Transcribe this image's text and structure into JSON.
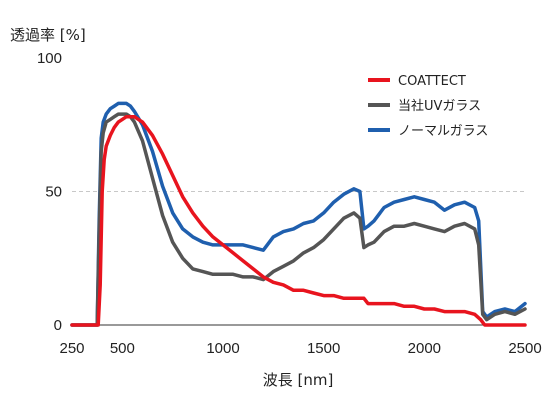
{
  "chart_data": {
    "type": "line",
    "ylabel": "透過率 [%]",
    "xlabel": "波長 [nm]",
    "xlim": [
      250,
      2500
    ],
    "ylim": [
      0,
      100
    ],
    "x_ticks": [
      250,
      500,
      1000,
      1500,
      2000,
      2500
    ],
    "y_ticks": [
      0,
      50,
      100
    ],
    "gridlines": [
      50
    ],
    "legend_position": "top-right",
    "series": [
      {
        "name": "COATTECT",
        "color": "#e8141e",
        "x": [
          250,
          380,
          390,
          400,
          410,
          420,
          440,
          460,
          480,
          500,
          520,
          540,
          560,
          580,
          600,
          650,
          700,
          750,
          800,
          850,
          900,
          950,
          1000,
          1050,
          1100,
          1150,
          1200,
          1250,
          1300,
          1350,
          1400,
          1450,
          1500,
          1550,
          1600,
          1650,
          1700,
          1720,
          1750,
          1800,
          1850,
          1900,
          1950,
          2000,
          2050,
          2100,
          2150,
          2200,
          2250,
          2280,
          2300,
          2350,
          2400,
          2450,
          2500
        ],
        "y": [
          0,
          0,
          15,
          50,
          62,
          67,
          71,
          74,
          76,
          77,
          78,
          78,
          78,
          77,
          76,
          71,
          64,
          56,
          48,
          42,
          37,
          33,
          30,
          27,
          24,
          21,
          18,
          16,
          15,
          13,
          13,
          12,
          11,
          11,
          10,
          10,
          10,
          8,
          8,
          8,
          8,
          7,
          7,
          6,
          6,
          5,
          5,
          5,
          4,
          2,
          0,
          0,
          0,
          0,
          0
        ]
      },
      {
        "name": "当社UVガラス",
        "color": "#555555",
        "x": [
          250,
          375,
          385,
          395,
          405,
          420,
          440,
          460,
          480,
          500,
          520,
          540,
          560,
          600,
          650,
          700,
          750,
          800,
          850,
          900,
          950,
          1000,
          1050,
          1100,
          1150,
          1200,
          1250,
          1300,
          1350,
          1400,
          1450,
          1500,
          1550,
          1600,
          1650,
          1680,
          1700,
          1720,
          1750,
          1800,
          1850,
          1900,
          1950,
          2000,
          2050,
          2100,
          2150,
          2200,
          2250,
          2270,
          2290,
          2310,
          2350,
          2400,
          2450,
          2500
        ],
        "y": [
          0,
          0,
          35,
          65,
          72,
          76,
          77,
          78,
          79,
          79,
          79,
          78,
          76,
          69,
          55,
          41,
          31,
          25,
          21,
          20,
          19,
          19,
          19,
          18,
          18,
          17,
          20,
          22,
          24,
          27,
          29,
          32,
          36,
          40,
          42,
          40,
          29,
          30,
          31,
          35,
          37,
          37,
          38,
          37,
          36,
          35,
          37,
          38,
          36,
          30,
          4,
          2,
          4,
          5,
          4,
          6
        ]
      },
      {
        "name": "ノーマルガラス",
        "color": "#1f5fae",
        "x": [
          250,
          375,
          385,
          395,
          405,
          420,
          440,
          460,
          480,
          500,
          520,
          540,
          560,
          600,
          650,
          700,
          750,
          800,
          850,
          900,
          950,
          1000,
          1050,
          1100,
          1150,
          1200,
          1250,
          1300,
          1350,
          1400,
          1450,
          1500,
          1550,
          1600,
          1650,
          1680,
          1700,
          1720,
          1750,
          1800,
          1850,
          1900,
          1950,
          2000,
          2050,
          2100,
          2150,
          2200,
          2250,
          2270,
          2290,
          2310,
          2350,
          2400,
          2450,
          2500
        ],
        "y": [
          0,
          0,
          40,
          70,
          76,
          79,
          81,
          82,
          83,
          83,
          83,
          82,
          80,
          75,
          65,
          52,
          42,
          36,
          33,
          31,
          30,
          30,
          30,
          30,
          29,
          28,
          33,
          35,
          36,
          38,
          39,
          42,
          46,
          49,
          51,
          50,
          36,
          37,
          39,
          44,
          46,
          47,
          48,
          47,
          46,
          43,
          45,
          46,
          44,
          39,
          5,
          3,
          5,
          6,
          5,
          8
        ]
      }
    ]
  }
}
